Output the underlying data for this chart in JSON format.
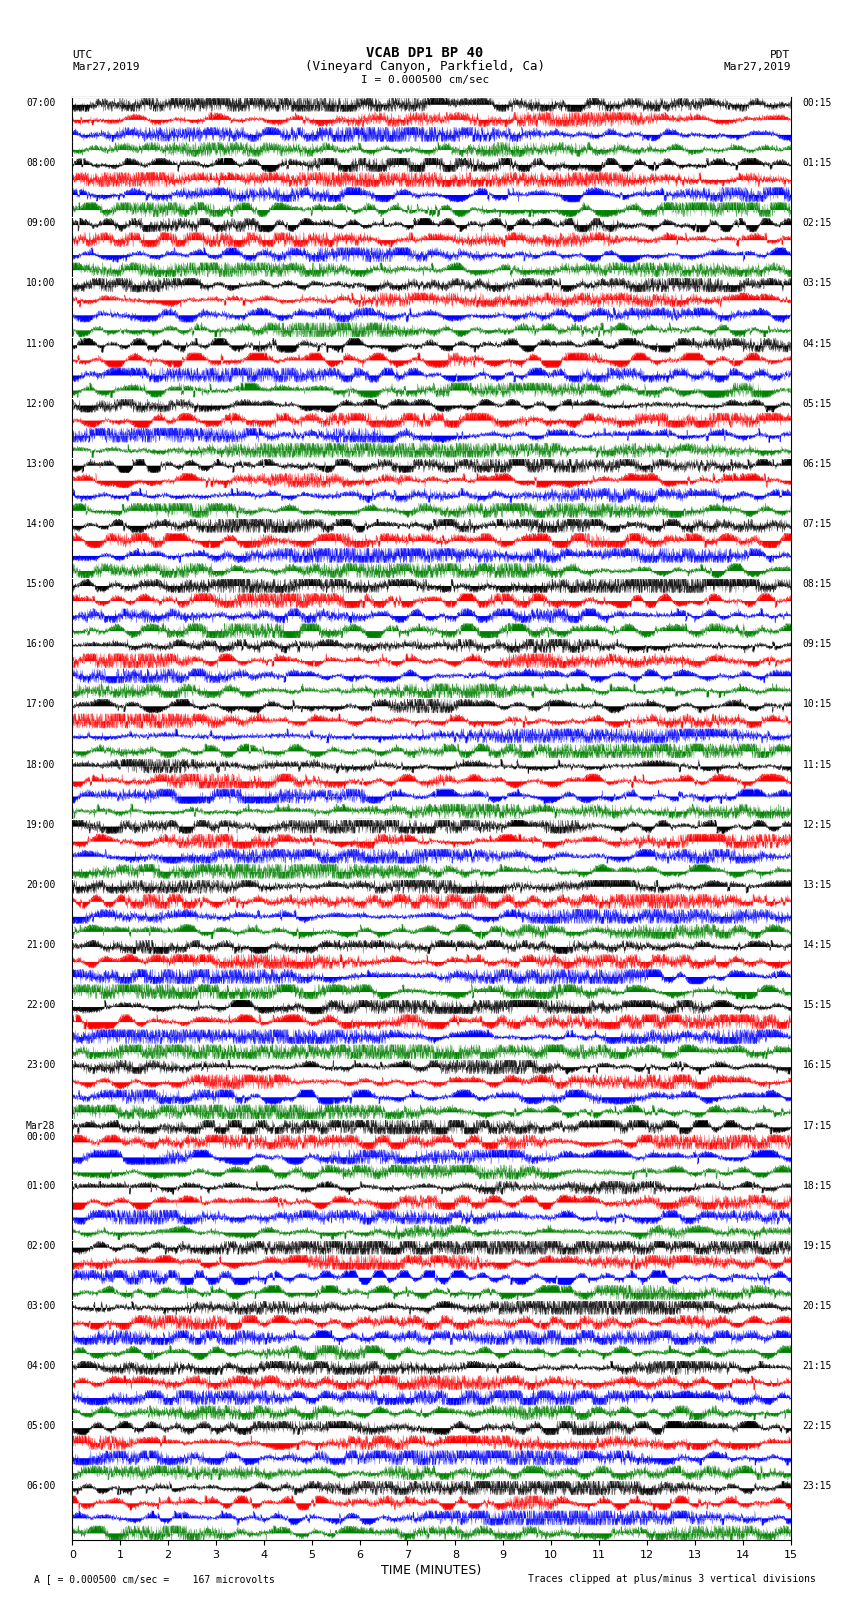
{
  "title_line1": "VCAB DP1 BP 40",
  "title_line2": "(Vineyard Canyon, Parkfield, Ca)",
  "scale_text": "I = 0.000500 cm/sec",
  "left_label_line1": "UTC",
  "left_label_line2": "Mar27,2019",
  "right_label_line1": "PDT",
  "right_label_line2": "Mar27,2019",
  "bottom_label": "TIME (MINUTES)",
  "footer_left": "A [ = 0.000500 cm/sec =    167 microvolts",
  "footer_right": "Traces clipped at plus/minus 3 vertical divisions",
  "left_times": [
    "07:00",
    "08:00",
    "09:00",
    "10:00",
    "11:00",
    "12:00",
    "13:00",
    "14:00",
    "15:00",
    "16:00",
    "17:00",
    "18:00",
    "19:00",
    "20:00",
    "21:00",
    "22:00",
    "23:00",
    "Mar28\n00:00",
    "01:00",
    "02:00",
    "03:00",
    "04:00",
    "05:00",
    "06:00"
  ],
  "right_times": [
    "00:15",
    "01:15",
    "02:15",
    "03:15",
    "04:15",
    "05:15",
    "06:15",
    "07:15",
    "08:15",
    "09:15",
    "10:15",
    "11:15",
    "12:15",
    "13:15",
    "14:15",
    "15:15",
    "16:15",
    "17:15",
    "18:15",
    "19:15",
    "20:15",
    "21:15",
    "22:15",
    "23:15"
  ],
  "n_rows": 24,
  "minutes_per_row": 15,
  "sub_colors": [
    "black",
    "red",
    "blue",
    "green"
  ],
  "background_color": "white",
  "xlim": [
    0,
    15
  ],
  "xticks": [
    0,
    1,
    2,
    3,
    4,
    5,
    6,
    7,
    8,
    9,
    10,
    11,
    12,
    13,
    14,
    15
  ],
  "samples_per_row": 4500
}
